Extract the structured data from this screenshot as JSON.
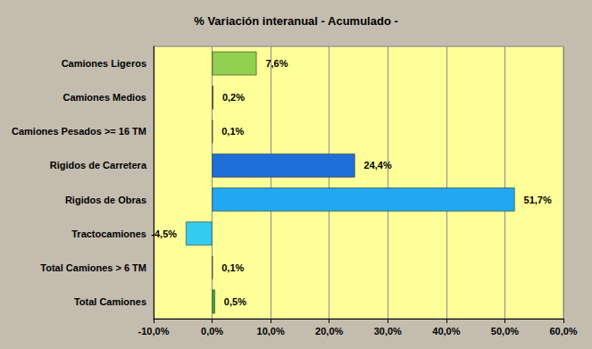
{
  "chart_data": {
    "type": "bar",
    "title": "% Variación interanual - Acumulado -",
    "orientation": "horizontal",
    "categories": [
      "Camiones Ligeros",
      "Camiones Medios",
      "Camiones Pesados >= 16 TM",
      "Rigidos de Carretera",
      "Rigidos de Obras",
      "Tractocamiones",
      "Total Camiones > 6 TM",
      "Total Camiones"
    ],
    "values": [
      7.6,
      0.2,
      0.1,
      24.4,
      51.7,
      -4.5,
      0.1,
      0.5
    ],
    "value_labels": [
      "7,6%",
      "0,2%",
      "0,1%",
      "24,4%",
      "51,7%",
      "-4,5%",
      "0,1%",
      "0,5%"
    ],
    "colors": [
      "#92d050",
      "#7f3f1f",
      "#7f7f7f",
      "#1f6fd8",
      "#22a8f0",
      "#33ccf0",
      "#7f7f7f",
      "#33bb33"
    ],
    "xlim": [
      -10,
      60
    ],
    "xticks": [
      {
        "value": -10,
        "label": "-10,0%"
      },
      {
        "value": 0,
        "label": "0,0%"
      },
      {
        "value": 10,
        "label": "10,0%"
      },
      {
        "value": 20,
        "label": "20,0%"
      },
      {
        "value": 30,
        "label": "30,0%"
      },
      {
        "value": 40,
        "label": "40,0%"
      },
      {
        "value": 50,
        "label": "50,0%"
      },
      {
        "value": 60,
        "label": "60,0%"
      }
    ],
    "grid": true,
    "data_labels": true
  }
}
